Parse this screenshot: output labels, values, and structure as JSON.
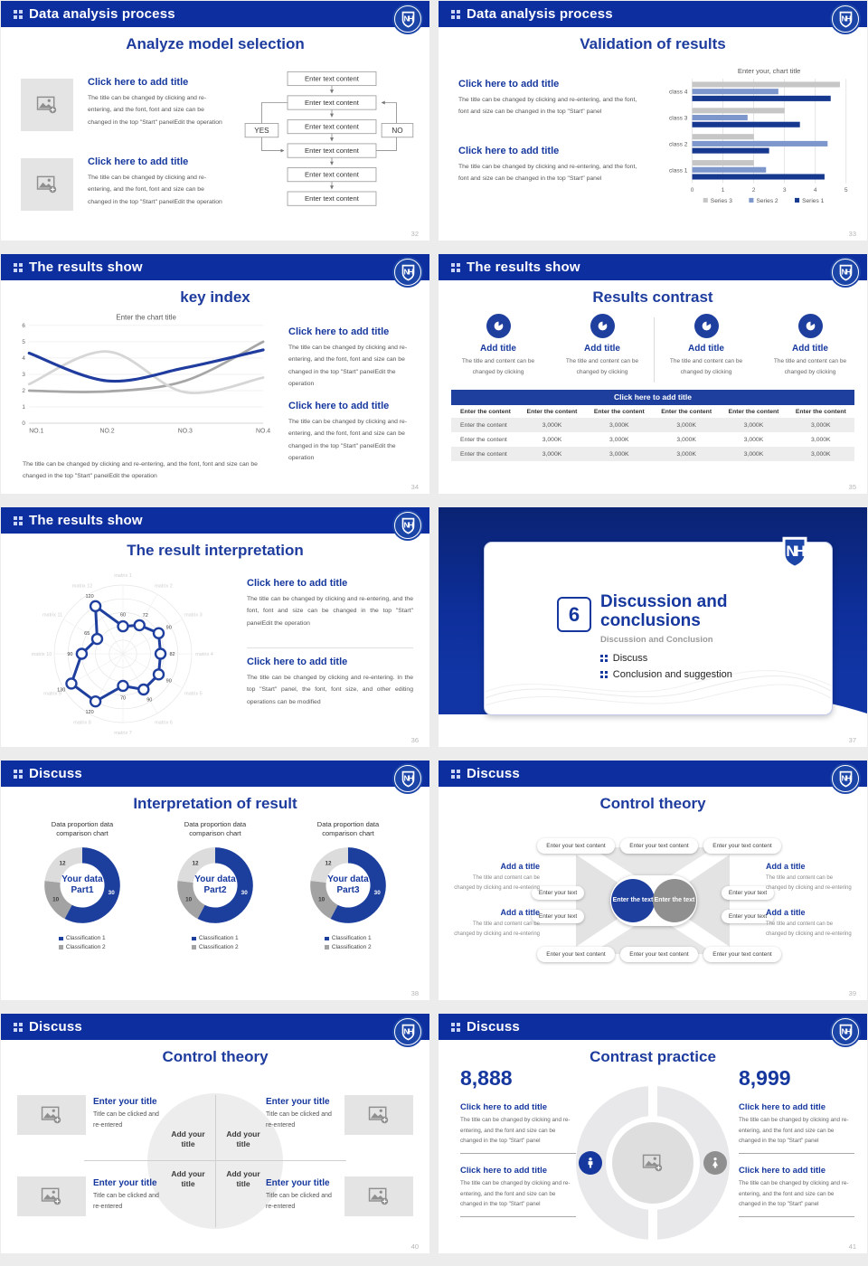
{
  "logo": {
    "monogram": "NH"
  },
  "colors": {
    "header_blue": "#0d2e9e",
    "accent_blue": "#16389e",
    "bar_dark": "#16388f",
    "bar_mid": "#7d97cc",
    "bar_gray": "#c6c6c6"
  },
  "slides": [
    {
      "header": "Data analysis process",
      "page": "32",
      "title": "Analyze model selection",
      "blocks": [
        {
          "title": "Click here to add title",
          "body": "The title can be changed by clicking and re-entering, and the font, font and size can be changed in the top \"Start\" panelEdit the operation"
        },
        {
          "title": "Click here to add title",
          "body": "The title can be changed by clicking and re-entering, and the font, font and size can be changed in the top \"Start\" panelEdit the operation"
        }
      ],
      "flow": {
        "boxes": [
          "Enter text content",
          "Enter text content",
          "Enter text content",
          "Enter text content",
          "Enter text content",
          "Enter text content"
        ],
        "yes": "YES",
        "no": "NO"
      }
    },
    {
      "header": "Data analysis process",
      "page": "33",
      "title": "Validation of results",
      "blocks": [
        {
          "title": "Click here to add title",
          "body": "The title can be changed by clicking and re-entering, and the font, font and size can be changed in the top \"Start\" panel"
        },
        {
          "title": "Click here to add title",
          "body": "The title can be changed by clicking and re-entering, and the font, font and size can be changed in the top \"Start\" panel"
        }
      ],
      "chart": {
        "type": "bar",
        "title": "Enter your, chart title",
        "categories": [
          "class 1",
          "class 2",
          "class 3",
          "class 4"
        ],
        "series": [
          {
            "name": "Series 1",
            "color": "#16388f",
            "values": [
              4.3,
              2.5,
              3.5,
              4.5
            ]
          },
          {
            "name": "Series 2",
            "color": "#7d97cc",
            "values": [
              2.4,
              4.4,
              1.8,
              2.8
            ]
          },
          {
            "name": "Series 3",
            "color": "#c6c6c6",
            "values": [
              2.0,
              2.0,
              3.0,
              4.8
            ]
          }
        ],
        "xmax": 5,
        "xticks": [
          0,
          1,
          2,
          3,
          4,
          5
        ]
      }
    },
    {
      "header": "The results show",
      "page": "34",
      "title": "key index",
      "chart": {
        "type": "line",
        "title": "Enter the chart title",
        "x": [
          "NO.1",
          "NO.2",
          "NO.3",
          "NO.4"
        ],
        "ymax": 6,
        "series": [
          {
            "color": "#1f3c9e",
            "width": 3,
            "values": [
              4.3,
              2.6,
              3.4,
              4.5
            ]
          },
          {
            "color": "#d6d6d6",
            "width": 2.6,
            "values": [
              2.4,
              4.4,
              1.9,
              2.8
            ]
          },
          {
            "color": "#a6a6a6",
            "width": 2.6,
            "values": [
              2.0,
              1.95,
              2.6,
              5.0
            ]
          }
        ]
      },
      "caption": "The title can be changed by clicking and re-entering, and the font, font and size can be changed in the top \"Start\" panelEdit the operation",
      "blocks": [
        {
          "title": "Click here to add title",
          "body": "The title can be changed by clicking and re-entering, and the font, font and size can be changed in the top \"Start\" panelEdit the operation"
        },
        {
          "title": "Click here to add title",
          "body": "The title can be changed by clicking and re-entering, and the font, font and size can be changed in the top \"Start\" panelEdit the operation"
        }
      ]
    },
    {
      "header": "The results show",
      "page": "35",
      "title": "Results contrast",
      "features": [
        {
          "title": "Add title",
          "body": "The title and content can be changed by clicking"
        },
        {
          "title": "Add title",
          "body": "The title and content can be changed by clicking"
        },
        {
          "title": "Add title",
          "body": "The title and content can be changed by clicking"
        },
        {
          "title": "Add title",
          "body": "The title and content can be changed by clicking"
        }
      ],
      "table": {
        "title": "Click here to add title",
        "col_headers": [
          "Enter the content",
          "Enter the content",
          "Enter the content",
          "Enter the content",
          "Enter the content",
          "Enter the content"
        ],
        "rows": [
          [
            "Enter the content",
            "3,000K",
            "3,000K",
            "3,000K",
            "3,000K",
            "3,000K"
          ],
          [
            "Enter the content",
            "3,000K",
            "3,000K",
            "3,000K",
            "3,000K",
            "3,000K"
          ],
          [
            "Enter the content",
            "3,000K",
            "3,000K",
            "3,000K",
            "3,000K",
            "3,000K"
          ]
        ]
      }
    },
    {
      "header": "The results show",
      "page": "36",
      "title": "The result interpretation",
      "radar": {
        "labels": [
          "matrix 1",
          "matrix 2",
          "matrix 3",
          "matrix 4",
          "matrix 5",
          "matrix 6",
          "matrix 7",
          "matrix 8",
          "matrix 9",
          "matrix 10",
          "matrix 11",
          "matrix 12"
        ],
        "values": [
          60,
          72,
          90,
          82,
          90,
          90,
          70,
          120,
          130,
          90,
          65,
          120
        ],
        "max": 150
      },
      "blocks": [
        {
          "title": "Click here to add title",
          "body": "The title can be changed by clicking and re-entering, and the font, font and size can be changed in the top \"Start\" panelEdit the operation"
        },
        {
          "title": "Click here to add title",
          "body": "The title can be changed by clicking and re-entering. In the top \"Start\" panel, the font, font size, and other editing operations can be modified"
        }
      ]
    },
    {
      "page": "37",
      "number": "6",
      "title": "Discussion and conclusions",
      "subtitle": "Discussion and Conclusion",
      "bullets": [
        "Discuss",
        "Conclusion and suggestion"
      ]
    },
    {
      "header": "Discuss",
      "page": "38",
      "title": "Interpretation of result",
      "donut_colors": [
        "#1c3f9e",
        "#a3a3a3",
        "#dcdcdc"
      ],
      "donuts": [
        {
          "chart_title": "Data proportion data comparison chart",
          "center_line1": "Your data",
          "center_line2": "Part1",
          "values": [
            30,
            10,
            12
          ]
        },
        {
          "chart_title": "Data proportion data comparison chart",
          "center_line1": "Your data",
          "center_line2": "Part2",
          "values": [
            30,
            10,
            12
          ]
        },
        {
          "chart_title": "Data proportion data comparison chart",
          "center_line1": "Your data",
          "center_line2": "Part3",
          "values": [
            30,
            10,
            12
          ]
        }
      ],
      "legend": [
        "Classification 1",
        "Classification 2"
      ]
    },
    {
      "header": "Discuss",
      "page": "39",
      "title": "Control theory",
      "pills_top": [
        "Enter your text content",
        "Enter your text content",
        "Enter your text content"
      ],
      "pills_bottom": [
        "Enter your text content",
        "Enter your text content",
        "Enter your text content"
      ],
      "pills_left": [
        "Enter your text",
        "Enter your text"
      ],
      "pills_right": [
        "Enter your text",
        "Enter your text"
      ],
      "center": [
        "Enter the text",
        "Enter the text"
      ],
      "side_blocks": [
        {
          "title": "Add a title",
          "body": "The title and content can be changed by clicking and re-entering"
        },
        {
          "title": "Add a title",
          "body": "The title and content can be changed by clicking and re-entering"
        },
        {
          "title": "Add a title",
          "body": "The title and content can be changed by clicking and re-entering"
        },
        {
          "title": "Add a title",
          "body": "The title and content can be changed by clicking and re-entering"
        }
      ]
    },
    {
      "header": "Discuss",
      "page": "40",
      "title": "Control theory",
      "quadrants": [
        "Add your title",
        "Add your title",
        "Add your title",
        "Add your title"
      ],
      "corners": [
        {
          "title": "Enter your title",
          "body": "Title can be clicked and re-entered"
        },
        {
          "title": "Enter your title",
          "body": "Title can be clicked and re-entered"
        },
        {
          "title": "Enter your title",
          "body": "Title can be clicked and re-entered"
        },
        {
          "title": "Enter your title",
          "body": "Title can be clicked and re-entered"
        }
      ]
    },
    {
      "header": "Discuss",
      "page": "41",
      "title": "Contrast practice",
      "left": {
        "number": "8,888",
        "blocks": [
          {
            "title": "Click here to add title",
            "body": "The title can be changed by clicking and re-entering, and the font and size can be changed in the top \"Start\" panel"
          },
          {
            "title": "Click here to add title",
            "body": "The title can be changed by clicking and re-entering, and the font and size can be changed in the top \"Start\" panel"
          }
        ]
      },
      "right": {
        "number": "8,999",
        "blocks": [
          {
            "title": "Click here to add title",
            "body": "The title can be changed by clicking and re-entering, and the font and size can be changed in the top \"Start\" panel"
          },
          {
            "title": "Click here to add title",
            "body": "The title can be changed by clicking and re-entering, and the font and size can be changed in the top \"Start\" panel"
          }
        ]
      }
    }
  ]
}
